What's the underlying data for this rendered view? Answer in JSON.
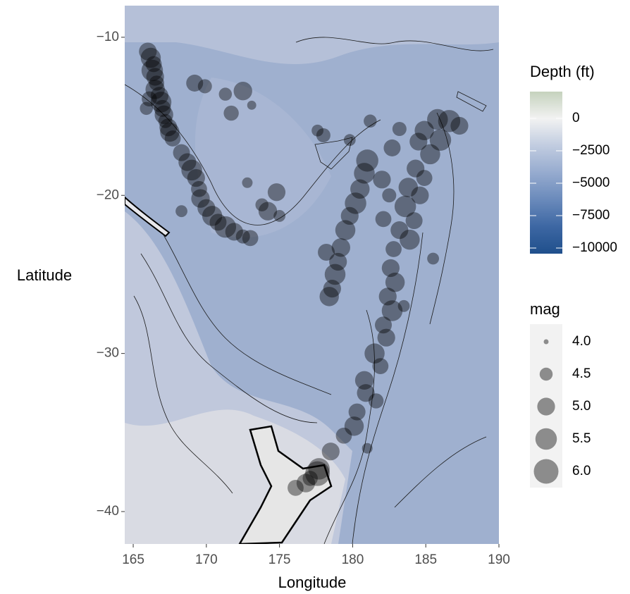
{
  "chart_data": {
    "type": "scatter",
    "x_label": "Longitude",
    "y_label": "Latitude",
    "xlim": [
      164.42,
      190
    ],
    "ylim": [
      -42.05,
      -8
    ],
    "xticks": [
      165,
      170,
      175,
      180,
      185,
      190
    ],
    "yticks": [
      {
        "value": -10,
        "label": "−10"
      },
      {
        "value": -20,
        "label": "−20"
      },
      {
        "value": -30,
        "label": "−30"
      },
      {
        "value": -40,
        "label": "−40"
      }
    ],
    "color": "#000000",
    "opacity": 0.4,
    "x": [
      166.0,
      166.2,
      166.4,
      166.3,
      166.5,
      166.6,
      166.5,
      166.8,
      166.9,
      167.0,
      167.1,
      167.2,
      167.4,
      167.5,
      167.7,
      166.1,
      165.9,
      168.3,
      168.7,
      169.0,
      169.3,
      169.5,
      169.6,
      170.0,
      170.4,
      170.8,
      171.3,
      171.9,
      172.5,
      173.0,
      169.2,
      169.9,
      171.3,
      172.5,
      171.7,
      173.1,
      174.8,
      174.2,
      173.8,
      175.0,
      168.3,
      172.8,
      185.8,
      186.6,
      187.3,
      184.9,
      184.5,
      186.0,
      185.3,
      184.3,
      184.9,
      183.8,
      184.6,
      183.6,
      184.2,
      183.2,
      183.9,
      182.8,
      182.6,
      182.9,
      182.4,
      182.7,
      182.1,
      182.3,
      181.5,
      181.9,
      180.8,
      180.9,
      181.6,
      180.3,
      180.1,
      179.4,
      178.5,
      177.7,
      177.1,
      176.8,
      176.1,
      177.6,
      181.0,
      180.8,
      180.5,
      180.2,
      179.8,
      179.5,
      179.2,
      179.0,
      178.8,
      178.6,
      178.4,
      178.2,
      182.0,
      182.5,
      181.2,
      178.0,
      182.7,
      183.2,
      182.1,
      185.5,
      183.5,
      181.0,
      177.6,
      179.8
    ],
    "y": [
      -10.9,
      -11.3,
      -11.7,
      -12.1,
      -12.5,
      -12.9,
      -13.3,
      -13.7,
      -14.1,
      -14.5,
      -14.9,
      -15.3,
      -15.7,
      -16.0,
      -16.4,
      -13.9,
      -14.5,
      -17.3,
      -17.9,
      -18.4,
      -18.9,
      -19.6,
      -20.2,
      -20.8,
      -21.3,
      -21.7,
      -22.0,
      -22.3,
      -22.6,
      -22.7,
      -12.9,
      -13.1,
      -13.6,
      -13.4,
      -14.8,
      -14.3,
      -19.8,
      -21.0,
      -20.6,
      -21.3,
      -21.0,
      -19.2,
      -15.2,
      -15.3,
      -15.6,
      -15.9,
      -16.6,
      -16.5,
      -17.4,
      -18.3,
      -18.9,
      -19.5,
      -20.0,
      -20.7,
      -21.6,
      -22.2,
      -22.8,
      -23.4,
      -24.6,
      -25.5,
      -26.4,
      -27.3,
      -28.2,
      -29.0,
      -30.0,
      -30.8,
      -31.7,
      -32.5,
      -33.0,
      -33.7,
      -34.6,
      -35.2,
      -36.2,
      -37.3,
      -37.9,
      -38.2,
      -38.5,
      -37.6,
      -17.8,
      -18.6,
      -19.6,
      -20.5,
      -21.3,
      -22.2,
      -23.3,
      -24.2,
      -25.0,
      -25.9,
      -26.4,
      -23.6,
      -19.0,
      -20.0,
      -15.3,
      -16.2,
      -17.0,
      -15.8,
      -21.5,
      -24.0,
      -27.0,
      -36.0,
      -15.9,
      -16.5
    ],
    "size": [
      5.0,
      5.3,
      4.8,
      5.5,
      5.0,
      4.7,
      5.2,
      5.0,
      5.4,
      4.9,
      5.1,
      4.6,
      5.0,
      5.2,
      4.8,
      4.7,
      4.5,
      4.9,
      5.0,
      5.4,
      5.0,
      4.8,
      5.1,
      5.0,
      5.3,
      4.9,
      5.5,
      5.0,
      4.6,
      4.8,
      4.9,
      4.6,
      4.5,
      5.1,
      4.7,
      4.2,
      5.0,
      5.1,
      4.5,
      4.4,
      4.4,
      4.3,
      5.4,
      5.6,
      5.0,
      5.2,
      5.0,
      5.5,
      5.3,
      5.0,
      4.8,
      5.2,
      5.0,
      5.5,
      4.9,
      5.0,
      5.3,
      4.8,
      5.0,
      5.2,
      5.0,
      5.4,
      4.9,
      5.0,
      5.3,
      4.8,
      5.1,
      5.0,
      4.7,
      4.9,
      5.2,
      4.8,
      5.0,
      5.5,
      4.7,
      5.1,
      4.8,
      6.0,
      5.6,
      5.4,
      5.2,
      5.5,
      5.0,
      5.3,
      5.1,
      5.0,
      5.4,
      5.0,
      5.2,
      4.9,
      5.0,
      4.6,
      4.5,
      4.6,
      4.9,
      4.6,
      4.8,
      4.4,
      4.4,
      4.3,
      4.4,
      4.4
    ],
    "fill_legend": {
      "title": "Depth (ft)",
      "lim": [
        -10435,
        2065
      ],
      "ticks": [
        0,
        {
          "value": -2500,
          "label": "−2500"
        },
        {
          "value": -5000,
          "label": "−5000"
        },
        {
          "value": -7500,
          "label": "−7500"
        },
        {
          "value": -10000,
          "label": "−10000"
        }
      ],
      "colors": [
        "#1f4f8c",
        "#3d67a3",
        "#6a8abb",
        "#96abcf",
        "#c1cce0",
        "#f2f2f2",
        "#c5d2bd"
      ]
    },
    "size_legend": {
      "title": "mag",
      "color": "#8c8c8c",
      "values": [
        {
          "value": 4,
          "label": "4.0"
        },
        {
          "value": 4.5,
          "label": "4.5"
        },
        {
          "value": 5,
          "label": "5.0"
        },
        {
          "value": 5.5,
          "label": "5.5"
        },
        {
          "value": 6,
          "label": "6.0"
        }
      ]
    }
  }
}
